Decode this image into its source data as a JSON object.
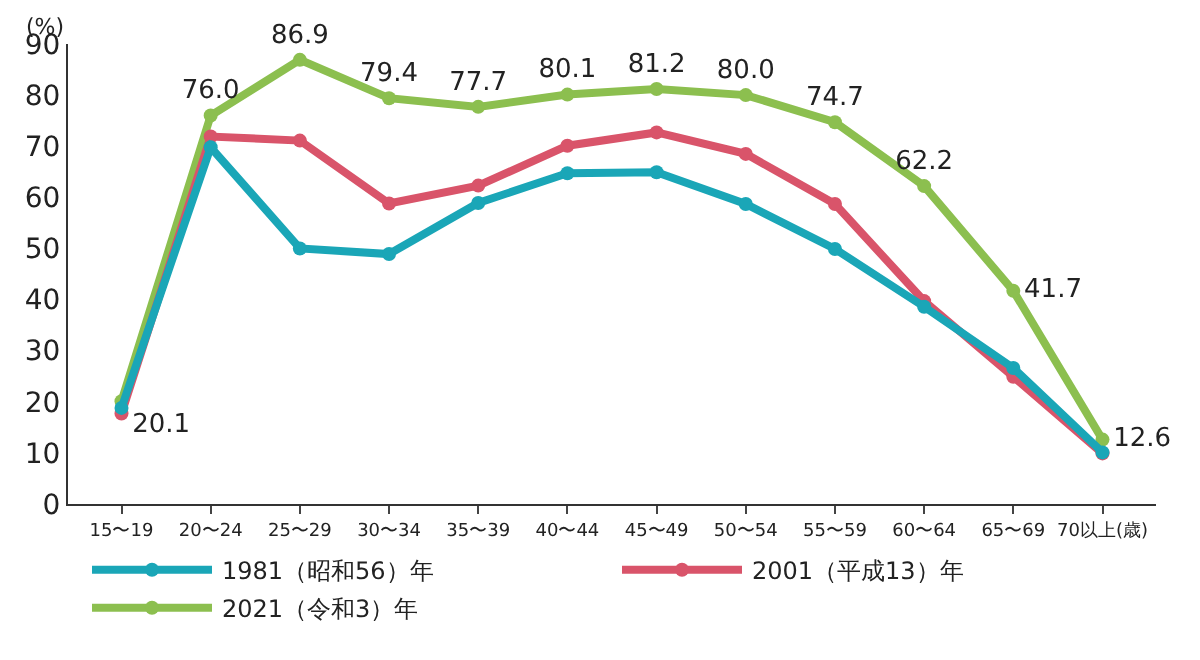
{
  "chart_data": {
    "type": "line",
    "ylabel": "(%)",
    "categories": [
      "15〜19",
      "20〜24",
      "25〜29",
      "30〜34",
      "35〜39",
      "40〜44",
      "45〜49",
      "50〜54",
      "55〜59",
      "60〜64",
      "65〜69",
      "70以上(歳)"
    ],
    "series": [
      {
        "name": "1981（昭和56）年",
        "color": "#1aa6b7",
        "values": [
          18.8,
          69.8,
          50.0,
          48.9,
          58.9,
          64.7,
          64.9,
          58.7,
          49.9,
          38.6,
          26.6,
          10.1
        ]
      },
      {
        "name": "2001（平成13）年",
        "color": "#d9546a",
        "values": [
          17.7,
          71.9,
          71.1,
          58.8,
          62.3,
          70.1,
          72.7,
          68.5,
          58.7,
          39.7,
          24.9,
          9.9
        ]
      },
      {
        "name": "2021（令和3）年",
        "color": "#8cbf4f",
        "values": [
          20.1,
          76.0,
          86.9,
          79.4,
          77.7,
          80.1,
          81.2,
          80.0,
          74.7,
          62.2,
          41.7,
          12.6
        ],
        "value_labels": [
          "20.1",
          "76.0",
          "86.9",
          "79.4",
          "77.7",
          "80.1",
          "81.2",
          "80.0",
          "74.7",
          "62.2",
          "41.7",
          "12.6"
        ]
      }
    ],
    "ylim": [
      0,
      90
    ],
    "yticks": [
      0,
      10,
      20,
      30,
      40,
      50,
      60,
      70,
      80,
      90
    ],
    "legend": "bottom",
    "marker": "circle",
    "line_style": "solid"
  }
}
